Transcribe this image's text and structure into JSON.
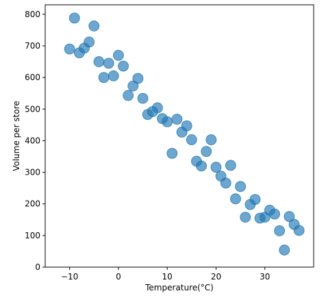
{
  "chart_data": {
    "type": "scatter",
    "title": "",
    "xlabel": "Temperature(°C)",
    "ylabel": "Volume per store",
    "xlim": [
      -15,
      40
    ],
    "ylim": [
      0,
      830
    ],
    "xticks": [
      -10,
      0,
      10,
      20,
      30
    ],
    "yticks": [
      0,
      100,
      200,
      300,
      400,
      500,
      600,
      700,
      800
    ],
    "grid": false,
    "legend": "none",
    "marker_color": "#1f77b4",
    "marker_alpha": 0.65,
    "points": [
      {
        "x": -10,
        "y": 690
      },
      {
        "x": -9,
        "y": 788
      },
      {
        "x": -8,
        "y": 678
      },
      {
        "x": -7,
        "y": 693
      },
      {
        "x": -6,
        "y": 712
      },
      {
        "x": -5,
        "y": 763
      },
      {
        "x": -4,
        "y": 650
      },
      {
        "x": -3,
        "y": 600
      },
      {
        "x": -2,
        "y": 645
      },
      {
        "x": -1,
        "y": 605
      },
      {
        "x": 0,
        "y": 670
      },
      {
        "x": 1,
        "y": 636
      },
      {
        "x": 2,
        "y": 543
      },
      {
        "x": 3,
        "y": 573
      },
      {
        "x": 4,
        "y": 597
      },
      {
        "x": 5,
        "y": 534
      },
      {
        "x": 6,
        "y": 483
      },
      {
        "x": 7,
        "y": 492
      },
      {
        "x": 8,
        "y": 504
      },
      {
        "x": 9,
        "y": 470
      },
      {
        "x": 10,
        "y": 460
      },
      {
        "x": 11,
        "y": 360
      },
      {
        "x": 12,
        "y": 468
      },
      {
        "x": 13,
        "y": 427
      },
      {
        "x": 14,
        "y": 447
      },
      {
        "x": 15,
        "y": 403
      },
      {
        "x": 16,
        "y": 335
      },
      {
        "x": 17,
        "y": 320
      },
      {
        "x": 18,
        "y": 366
      },
      {
        "x": 19,
        "y": 403
      },
      {
        "x": 20,
        "y": 316
      },
      {
        "x": 21,
        "y": 288
      },
      {
        "x": 22,
        "y": 266
      },
      {
        "x": 23,
        "y": 322
      },
      {
        "x": 24,
        "y": 216
      },
      {
        "x": 25,
        "y": 255
      },
      {
        "x": 26,
        "y": 158
      },
      {
        "x": 27,
        "y": 198
      },
      {
        "x": 28,
        "y": 214
      },
      {
        "x": 29,
        "y": 155
      },
      {
        "x": 30,
        "y": 158
      },
      {
        "x": 31,
        "y": 180
      },
      {
        "x": 32,
        "y": 168
      },
      {
        "x": 33,
        "y": 115
      },
      {
        "x": 34,
        "y": 54
      },
      {
        "x": 35,
        "y": 160
      },
      {
        "x": 36,
        "y": 135
      },
      {
        "x": 37,
        "y": 116
      }
    ]
  }
}
